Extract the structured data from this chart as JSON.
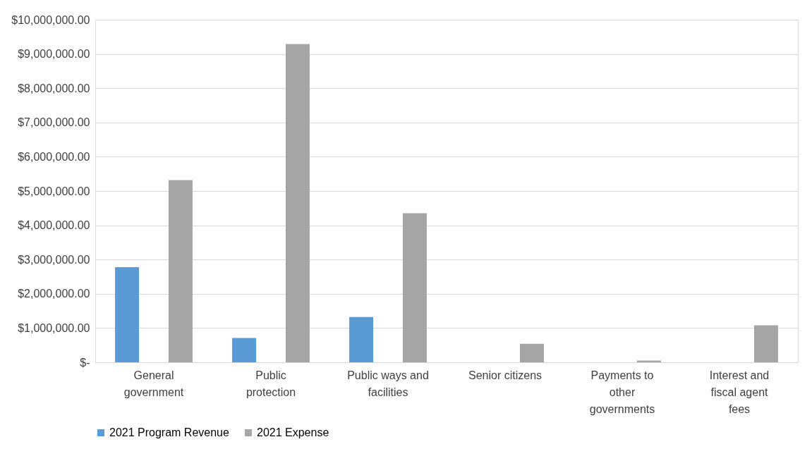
{
  "chart_data": {
    "type": "bar",
    "categories": [
      "General government",
      "Public protection",
      "Public ways and facilities",
      "Senior citizens",
      "Payments to other governments",
      "Interest and fiscal agent fees"
    ],
    "series": [
      {
        "name": "2021  Program  Revenue",
        "color": "#5b9bd5",
        "values": [
          2780000,
          710000,
          1320000,
          null,
          null,
          null
        ]
      },
      {
        "name": "2021  Expense",
        "color": "#a5a5a5",
        "values": [
          5320000,
          9290000,
          4350000,
          540000,
          50000,
          1080000
        ]
      }
    ],
    "ylim": [
      0,
      10000000
    ],
    "yticks": [
      {
        "value": 0,
        "label": "$-"
      },
      {
        "value": 1000000,
        "label": "$1,000,000.00"
      },
      {
        "value": 2000000,
        "label": "$2,000,000.00"
      },
      {
        "value": 3000000,
        "label": "$3,000,000.00"
      },
      {
        "value": 4000000,
        "label": "$4,000,000.00"
      },
      {
        "value": 5000000,
        "label": "$5,000,000.00"
      },
      {
        "value": 6000000,
        "label": "$6,000,000.00"
      },
      {
        "value": 7000000,
        "label": "$7,000,000.00"
      },
      {
        "value": 8000000,
        "label": "$8,000,000.00"
      },
      {
        "value": 9000000,
        "label": "$9,000,000.00"
      },
      {
        "value": 10000000,
        "label": "$10,000,000.00"
      }
    ],
    "grid": "y",
    "legend": "bottom"
  }
}
